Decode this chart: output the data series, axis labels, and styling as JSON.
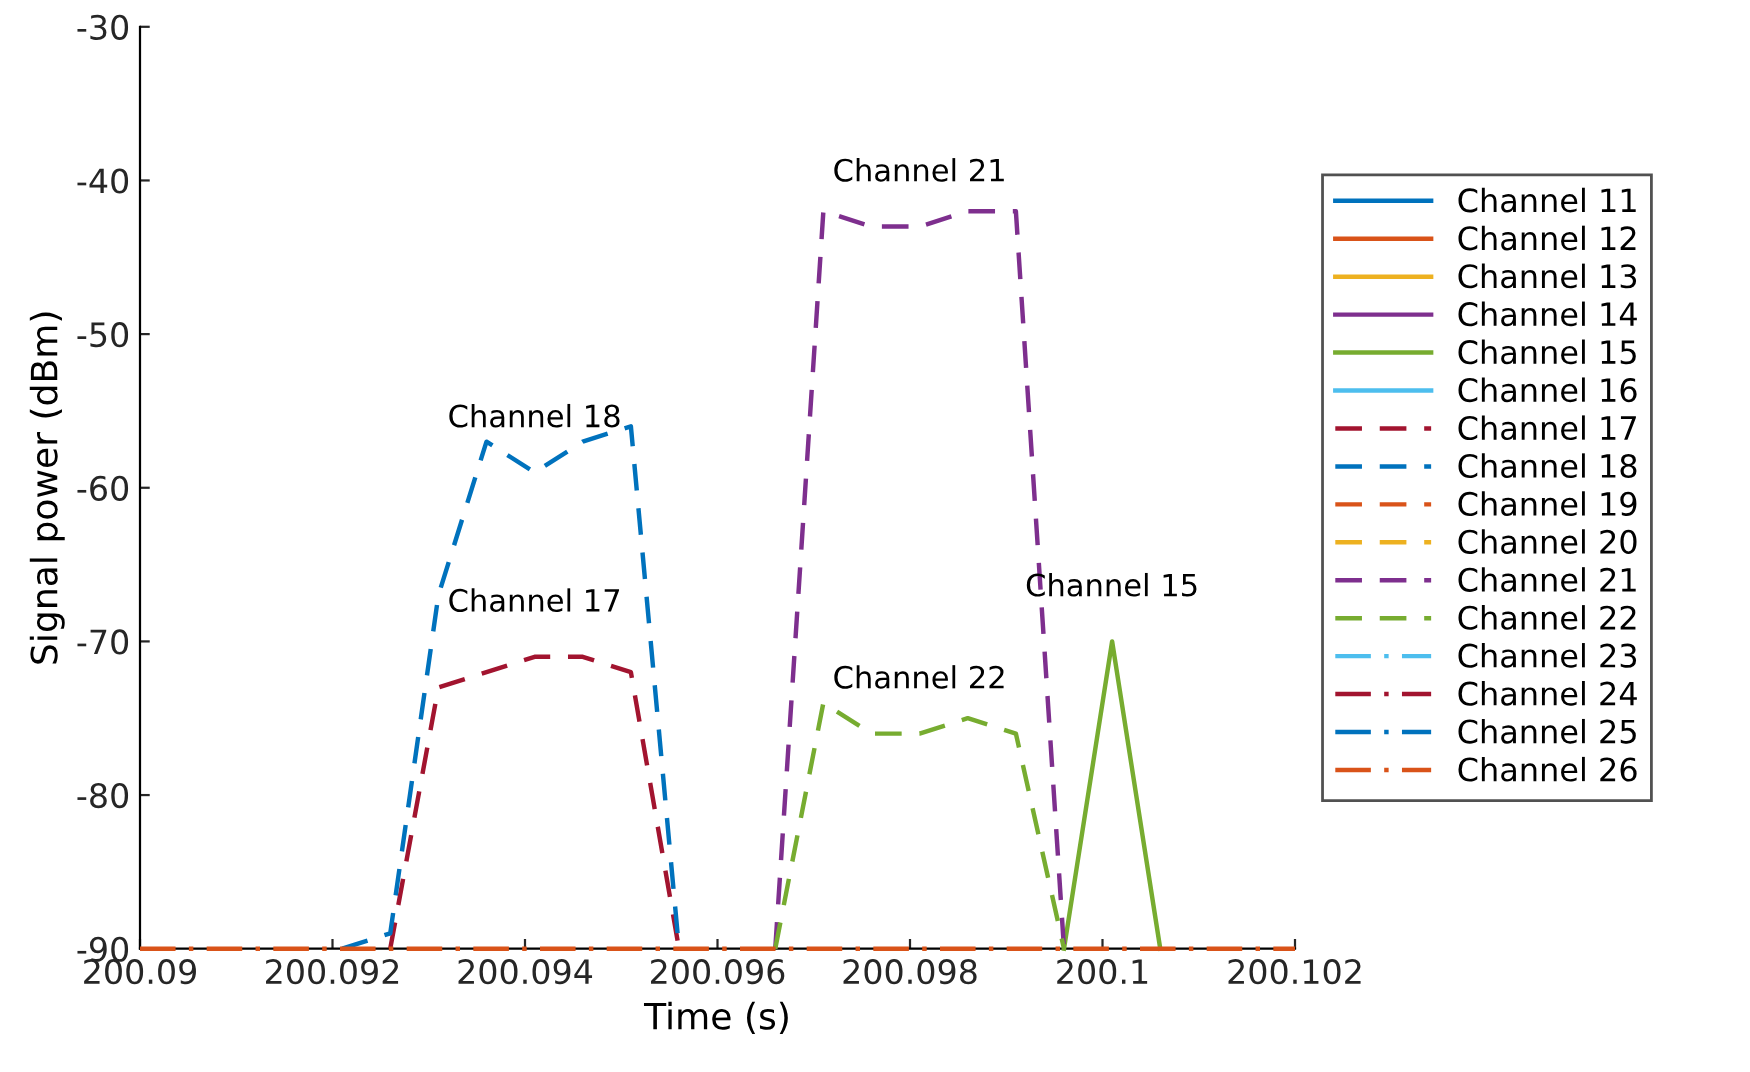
{
  "chart_data": {
    "type": "line",
    "xlabel": "Time (s)",
    "ylabel": "Signal power (dBm)",
    "xlim": [
      200.09,
      200.102
    ],
    "xticks": [
      200.09,
      200.092,
      200.094,
      200.096,
      200.098,
      200.1,
      200.102
    ],
    "ylim": [
      -90,
      -30
    ],
    "yticks": [
      -90,
      -80,
      -70,
      -60,
      -50,
      -40,
      -30
    ],
    "grid": false,
    "legend": "right",
    "marker": "none",
    "series": [
      {
        "name": "Channel 11",
        "color": "#0072bd",
        "line_style": "solid"
      },
      {
        "name": "Channel 12",
        "color": "#d95319",
        "line_style": "solid"
      },
      {
        "name": "Channel 13",
        "color": "#edb120",
        "line_style": "solid"
      },
      {
        "name": "Channel 14",
        "color": "#7e2f8e",
        "line_style": "solid"
      },
      {
        "name": "Channel 15",
        "color": "#77ac30",
        "line_style": "solid",
        "x": [
          200.0996,
          200.1001,
          200.1006
        ],
        "values": [
          -90,
          -70,
          -90
        ]
      },
      {
        "name": "Channel 16",
        "color": "#4dbeee",
        "line_style": "solid"
      },
      {
        "name": "Channel 17",
        "color": "#a2142f",
        "line_style": "dashed",
        "x": [
          200.0926,
          200.0931,
          200.0936,
          200.0941,
          200.0946,
          200.0951,
          200.0956
        ],
        "values": [
          -90,
          -73,
          -72,
          -71,
          -71,
          -72,
          -90
        ]
      },
      {
        "name": "Channel 18",
        "color": "#0072bd",
        "line_style": "dashed",
        "x": [
          200.0921,
          200.0926,
          200.0931,
          200.0936,
          200.0941,
          200.0946,
          200.0951,
          200.0956
        ],
        "values": [
          -90,
          -89,
          -67,
          -57,
          -59,
          -57,
          -56,
          -90
        ]
      },
      {
        "name": "Channel 19",
        "color": "#d95319",
        "line_style": "dashed"
      },
      {
        "name": "Channel 20",
        "color": "#edb120",
        "line_style": "dashed"
      },
      {
        "name": "Channel 21",
        "color": "#7e2f8e",
        "line_style": "dashed",
        "x": [
          200.0966,
          200.0971,
          200.0976,
          200.0981,
          200.0986,
          200.0991,
          200.0996
        ],
        "values": [
          -90,
          -42,
          -43,
          -43,
          -42,
          -42,
          -90
        ]
      },
      {
        "name": "Channel 22",
        "color": "#77ac30",
        "line_style": "dashed",
        "x": [
          200.0966,
          200.0971,
          200.0976,
          200.0981,
          200.0986,
          200.0991,
          200.0996
        ],
        "values": [
          -90,
          -74,
          -76,
          -76,
          -75,
          -76,
          -90
        ]
      },
      {
        "name": "Channel 23",
        "color": "#4dbeee",
        "line_style": "dashdot"
      },
      {
        "name": "Channel 24",
        "color": "#a2142f",
        "line_style": "dashdot"
      },
      {
        "name": "Channel 25",
        "color": "#0072bd",
        "line_style": "dashdot"
      },
      {
        "name": "Channel 26",
        "color": "#d95319",
        "line_style": "dashdot",
        "x": [
          200.09,
          200.102
        ],
        "values": [
          -90,
          -90
        ]
      }
    ],
    "annotations": [
      {
        "text": "Channel 18",
        "x": 200.0941,
        "y": -59
      },
      {
        "text": "Channel 17",
        "x": 200.0941,
        "y": -71
      },
      {
        "text": "Channel 21",
        "x": 200.0981,
        "y": -43
      },
      {
        "text": "Channel 22",
        "x": 200.0981,
        "y": -76
      },
      {
        "text": "Channel 15",
        "x": 200.1001,
        "y": -70
      }
    ]
  }
}
